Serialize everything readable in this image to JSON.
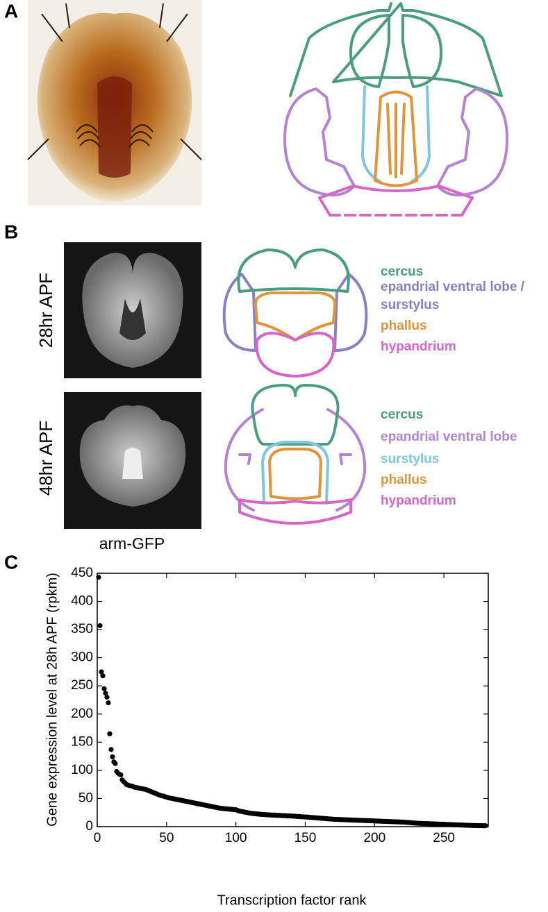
{
  "panel_labels": [
    "A",
    "B",
    "C"
  ],
  "panel_b": {
    "image_caption": "arm-GFP",
    "stages": [
      {
        "label": "28hr APF",
        "legend": [
          {
            "text": "cercus",
            "color": "#4a9e7f"
          },
          {
            "text": "epandrial ventral lobe /",
            "color": "#8a80c8"
          },
          {
            "text": "surstylus",
            "color": "#8a80c8"
          },
          {
            "text": "phallus",
            "color": "#e0953a"
          },
          {
            "text": "hypandrium",
            "color": "#d865c8"
          }
        ]
      },
      {
        "label": "48hr APF",
        "legend": [
          {
            "text": "cercus",
            "color": "#4a9e7f"
          },
          {
            "text": "epandrial ventral lobe",
            "color": "#b385d1"
          },
          {
            "text": "surstylus",
            "color": "#7fc6e0"
          },
          {
            "text": "phallus",
            "color": "#e0953a"
          },
          {
            "text": "hypandrium",
            "color": "#d865c8"
          }
        ]
      }
    ]
  },
  "chart_data": {
    "type": "scatter",
    "x_label": "Transcription factor rank",
    "y_label": "Gene expression level at 28h APF (rpkm)",
    "xlim": [
      0,
      282
    ],
    "ylim": [
      0,
      450
    ],
    "xticks": [
      0,
      50,
      100,
      150,
      200,
      250
    ],
    "yticks": [
      0,
      50,
      100,
      150,
      200,
      250,
      300,
      350,
      400,
      450
    ],
    "color": "#000000",
    "x": [
      1,
      2,
      3,
      4,
      5,
      6,
      7,
      8,
      9,
      10,
      11,
      12,
      13,
      14,
      15,
      16,
      17,
      18,
      19,
      20,
      21,
      22,
      23,
      24,
      25,
      26,
      27,
      28,
      29,
      30,
      31,
      32,
      33,
      34,
      35,
      36,
      37,
      38,
      39,
      40,
      41,
      42,
      43,
      44,
      45,
      46,
      47,
      48,
      49,
      50,
      51,
      52,
      53,
      54,
      55,
      56,
      57,
      58,
      59,
      60,
      61,
      62,
      63,
      64,
      65,
      66,
      67,
      68,
      69,
      70,
      71,
      72,
      73,
      74,
      75,
      76,
      77,
      78,
      79,
      80,
      81,
      82,
      83,
      84,
      85,
      86,
      87,
      88,
      89,
      90,
      91,
      92,
      93,
      94,
      95,
      96,
      97,
      98,
      99,
      100,
      101,
      102,
      103,
      104,
      105,
      106,
      107,
      108,
      109,
      110,
      111,
      112,
      113,
      114,
      115,
      116,
      117,
      118,
      119,
      120,
      121,
      122,
      123,
      124,
      125,
      126,
      127,
      128,
      129,
      130,
      131,
      132,
      133,
      134,
      135,
      136,
      137,
      138,
      139,
      140,
      141,
      142,
      143,
      144,
      145,
      146,
      147,
      148,
      149,
      150,
      151,
      152,
      153,
      154,
      155,
      156,
      157,
      158,
      159,
      160,
      161,
      162,
      163,
      164,
      165,
      166,
      167,
      168,
      169,
      170,
      171,
      172,
      173,
      174,
      175,
      176,
      177,
      178,
      179,
      180,
      181,
      182,
      183,
      184,
      185,
      186,
      187,
      188,
      189,
      190,
      191,
      192,
      193,
      194,
      195,
      196,
      197,
      198,
      199,
      200,
      201,
      202,
      203,
      204,
      205,
      206,
      207,
      208,
      209,
      210,
      211,
      212,
      213,
      214,
      215,
      216,
      217,
      218,
      219,
      220,
      221,
      222,
      223,
      224,
      225,
      226,
      227,
      228,
      229,
      230,
      231,
      232,
      233,
      234,
      235,
      236,
      237,
      238,
      239,
      240,
      241,
      242,
      243,
      244,
      245,
      246,
      247,
      248,
      249,
      250,
      251,
      252,
      253,
      254,
      255,
      256,
      257,
      258,
      259,
      260,
      261,
      262,
      263,
      264,
      265,
      266,
      267,
      268,
      269,
      270,
      271,
      272,
      273,
      274,
      275,
      276,
      277,
      278,
      279,
      280
    ],
    "values": [
      443,
      357,
      275,
      268,
      245,
      237,
      230,
      220,
      165,
      137,
      124,
      115,
      112,
      98,
      95,
      93,
      92,
      83,
      80,
      78,
      75,
      74,
      73,
      72.5,
      72,
      71,
      70,
      69.5,
      69,
      68.5,
      68,
      67.5,
      67,
      66.5,
      66,
      65,
      64,
      63,
      62,
      61,
      60,
      59,
      58,
      57,
      56,
      55,
      54.5,
      54,
      53,
      52.5,
      51.5,
      51,
      50.5,
      50,
      49.5,
      49,
      48.5,
      48,
      47.5,
      47,
      46.5,
      46,
      45.5,
      45,
      44.5,
      44,
      43.5,
      43,
      42.5,
      42,
      41.5,
      41,
      40.5,
      40,
      39.5,
      39,
      38.5,
      38,
      37.5,
      37,
      36.5,
      36,
      35.5,
      35,
      34.5,
      34,
      33.5,
      33,
      32.5,
      32.5,
      32,
      32,
      31.5,
      31.5,
      31,
      31,
      30.5,
      30.5,
      30,
      30,
      29,
      28,
      27.5,
      27,
      26.5,
      26,
      25.5,
      25,
      24.5,
      24,
      23.5,
      23.5,
      23,
      23,
      22.5,
      22.5,
      22,
      22,
      21.5,
      21.5,
      21.5,
      21,
      21,
      21,
      20.5,
      20.5,
      20.5,
      20.5,
      20,
      20,
      20,
      20,
      19.5,
      19.5,
      19.5,
      19.5,
      19,
      19,
      19,
      19,
      18.5,
      18.5,
      18.5,
      18,
      18,
      18,
      17.5,
      17.5,
      17.5,
      17,
      17,
      16.8,
      16.6,
      16.4,
      16.2,
      16,
      15.8,
      15.6,
      15.4,
      15.2,
      15,
      14.8,
      14.6,
      14.4,
      14.2,
      14,
      13.8,
      13.6,
      13.4,
      13.2,
      13,
      12.9,
      12.8,
      12.7,
      12.6,
      12.5,
      12.4,
      12.3,
      12.2,
      12.1,
      12,
      11.9,
      11.8,
      11.7,
      11.6,
      11.5,
      11.4,
      11.3,
      11.2,
      11.1,
      11,
      10.9,
      10.8,
      10.7,
      10.6,
      10.5,
      10.4,
      10.3,
      10.2,
      10.1,
      10,
      9.9,
      9.8,
      9.7,
      9.6,
      9.5,
      9.4,
      9.3,
      9.2,
      9.1,
      9,
      8.9,
      8.8,
      8.7,
      8.6,
      8.5,
      8.4,
      8.3,
      8.2,
      8.1,
      8,
      7.8,
      7.6,
      7.4,
      7.2,
      7,
      6.8,
      6.6,
      6.4,
      6.2,
      6,
      5.9,
      5.8,
      5.7,
      5.6,
      5.5,
      5.4,
      5.3,
      5.2,
      5.1,
      5,
      4.9,
      4.8,
      4.7,
      4.6,
      4.5,
      4.4,
      4.3,
      4.2,
      4.1,
      4,
      3.9,
      3.8,
      3.7,
      3.6,
      3.5,
      3.4,
      3.3,
      3.2,
      3.1,
      3,
      2.9,
      2.8,
      2.7,
      2.6,
      2.5,
      2.4,
      2.3,
      2.2,
      2.1,
      2,
      2,
      1.9,
      1.9,
      1.8,
      1.8,
      1.7,
      1.7,
      1.6,
      1.6
    ]
  }
}
